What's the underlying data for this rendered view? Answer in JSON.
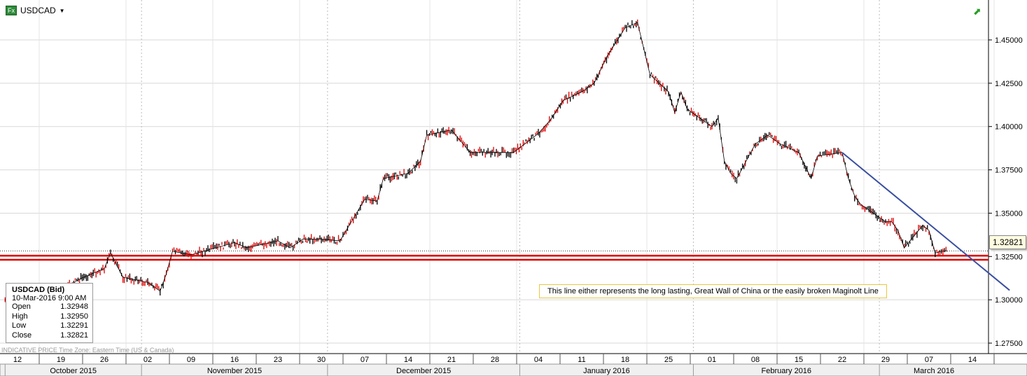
{
  "header": {
    "fx_badge": "Fx",
    "symbol": "USDCAD"
  },
  "info": {
    "title": "USDCAD (Bid)",
    "datetime": "10-Mar-2016 9:00 AM",
    "rows": [
      [
        "Open",
        "1.32948"
      ],
      [
        "High",
        "1.32950"
      ],
      [
        "Low",
        "1.32291"
      ],
      [
        "Close",
        "1.32821"
      ]
    ]
  },
  "footer": "INDICATIVE PRICE   Time Zone: Eastern Time (US & Canada)",
  "annotation": "This line either represents the long lasting, Great Wall of China or the easily broken Maginolt Line",
  "price_label": "1.32821",
  "chart_data": {
    "type": "line",
    "title": "USDCAD",
    "ylim": [
      1.2625,
      1.4725
    ],
    "yticks": [
      "1.27500",
      "1.30000",
      "1.32500",
      "1.35000",
      "1.37500",
      "1.40000",
      "1.42500",
      "1.45000"
    ],
    "xlabel_weeks": [
      "12",
      "19",
      "26",
      "02",
      "09",
      "16",
      "23",
      "30",
      "07",
      "14",
      "21",
      "28",
      "04",
      "11",
      "18",
      "25",
      "01",
      "08",
      "15",
      "22",
      "29",
      "07",
      "14"
    ],
    "months": [
      {
        "label": "October 2015",
        "from": -2,
        "to": 20
      },
      {
        "label": "November 2015",
        "from": 20,
        "to": 50
      },
      {
        "label": "December 2015",
        "from": 50,
        "to": 81
      },
      {
        "label": "January 2016",
        "from": 81,
        "to": 109
      },
      {
        "label": "February 2016",
        "from": 109,
        "to": 139
      },
      {
        "label": "March 2016",
        "from": 139,
        "to": 160
      }
    ],
    "x_unit": "days since 12-Oct-2015",
    "series": {
      "name": "USDCAD (Bid)",
      "x": [
        -2,
        3,
        7,
        10,
        14,
        15,
        17,
        21,
        23,
        24,
        25,
        28,
        35,
        37,
        42,
        44,
        46,
        49,
        52,
        53,
        56,
        58,
        59,
        63,
        65,
        66,
        70,
        73,
        77,
        80,
        84,
        86,
        88,
        91,
        93,
        95,
        98,
        100,
        101,
        102,
        105,
        106,
        107,
        108,
        112,
        113,
        114,
        115,
        116,
        119,
        121,
        123,
        126,
        128,
        129,
        133,
        134,
        135,
        136,
        140,
        141,
        142,
        143,
        146,
        147,
        148,
        149,
        150
      ],
      "y": [
        1.3,
        1.29,
        1.305,
        1.312,
        1.318,
        1.327,
        1.313,
        1.31,
        1.305,
        1.315,
        1.328,
        1.326,
        1.333,
        1.33,
        1.334,
        1.33,
        1.335,
        1.335,
        1.334,
        1.34,
        1.358,
        1.357,
        1.37,
        1.373,
        1.38,
        1.395,
        1.398,
        1.385,
        1.385,
        1.385,
        1.396,
        1.404,
        1.415,
        1.42,
        1.425,
        1.44,
        1.457,
        1.46,
        1.445,
        1.43,
        1.42,
        1.408,
        1.42,
        1.41,
        1.4,
        1.405,
        1.38,
        1.373,
        1.37,
        1.39,
        1.395,
        1.39,
        1.385,
        1.37,
        1.383,
        1.385,
        1.37,
        1.36,
        1.355,
        1.345,
        1.345,
        1.34,
        1.33,
        1.343,
        1.34,
        1.327,
        1.328,
        1.3282
      ]
    },
    "trendline": {
      "x": [
        133,
        160
      ],
      "y": [
        1.385,
        1.3055
      ]
    },
    "support_lines": [
      1.3255,
      1.3231
    ],
    "last_price": 1.32821,
    "colors": {
      "up": "#000000",
      "down": "#e00000",
      "trend": "#3a4fa0",
      "support": "#e00000"
    }
  }
}
